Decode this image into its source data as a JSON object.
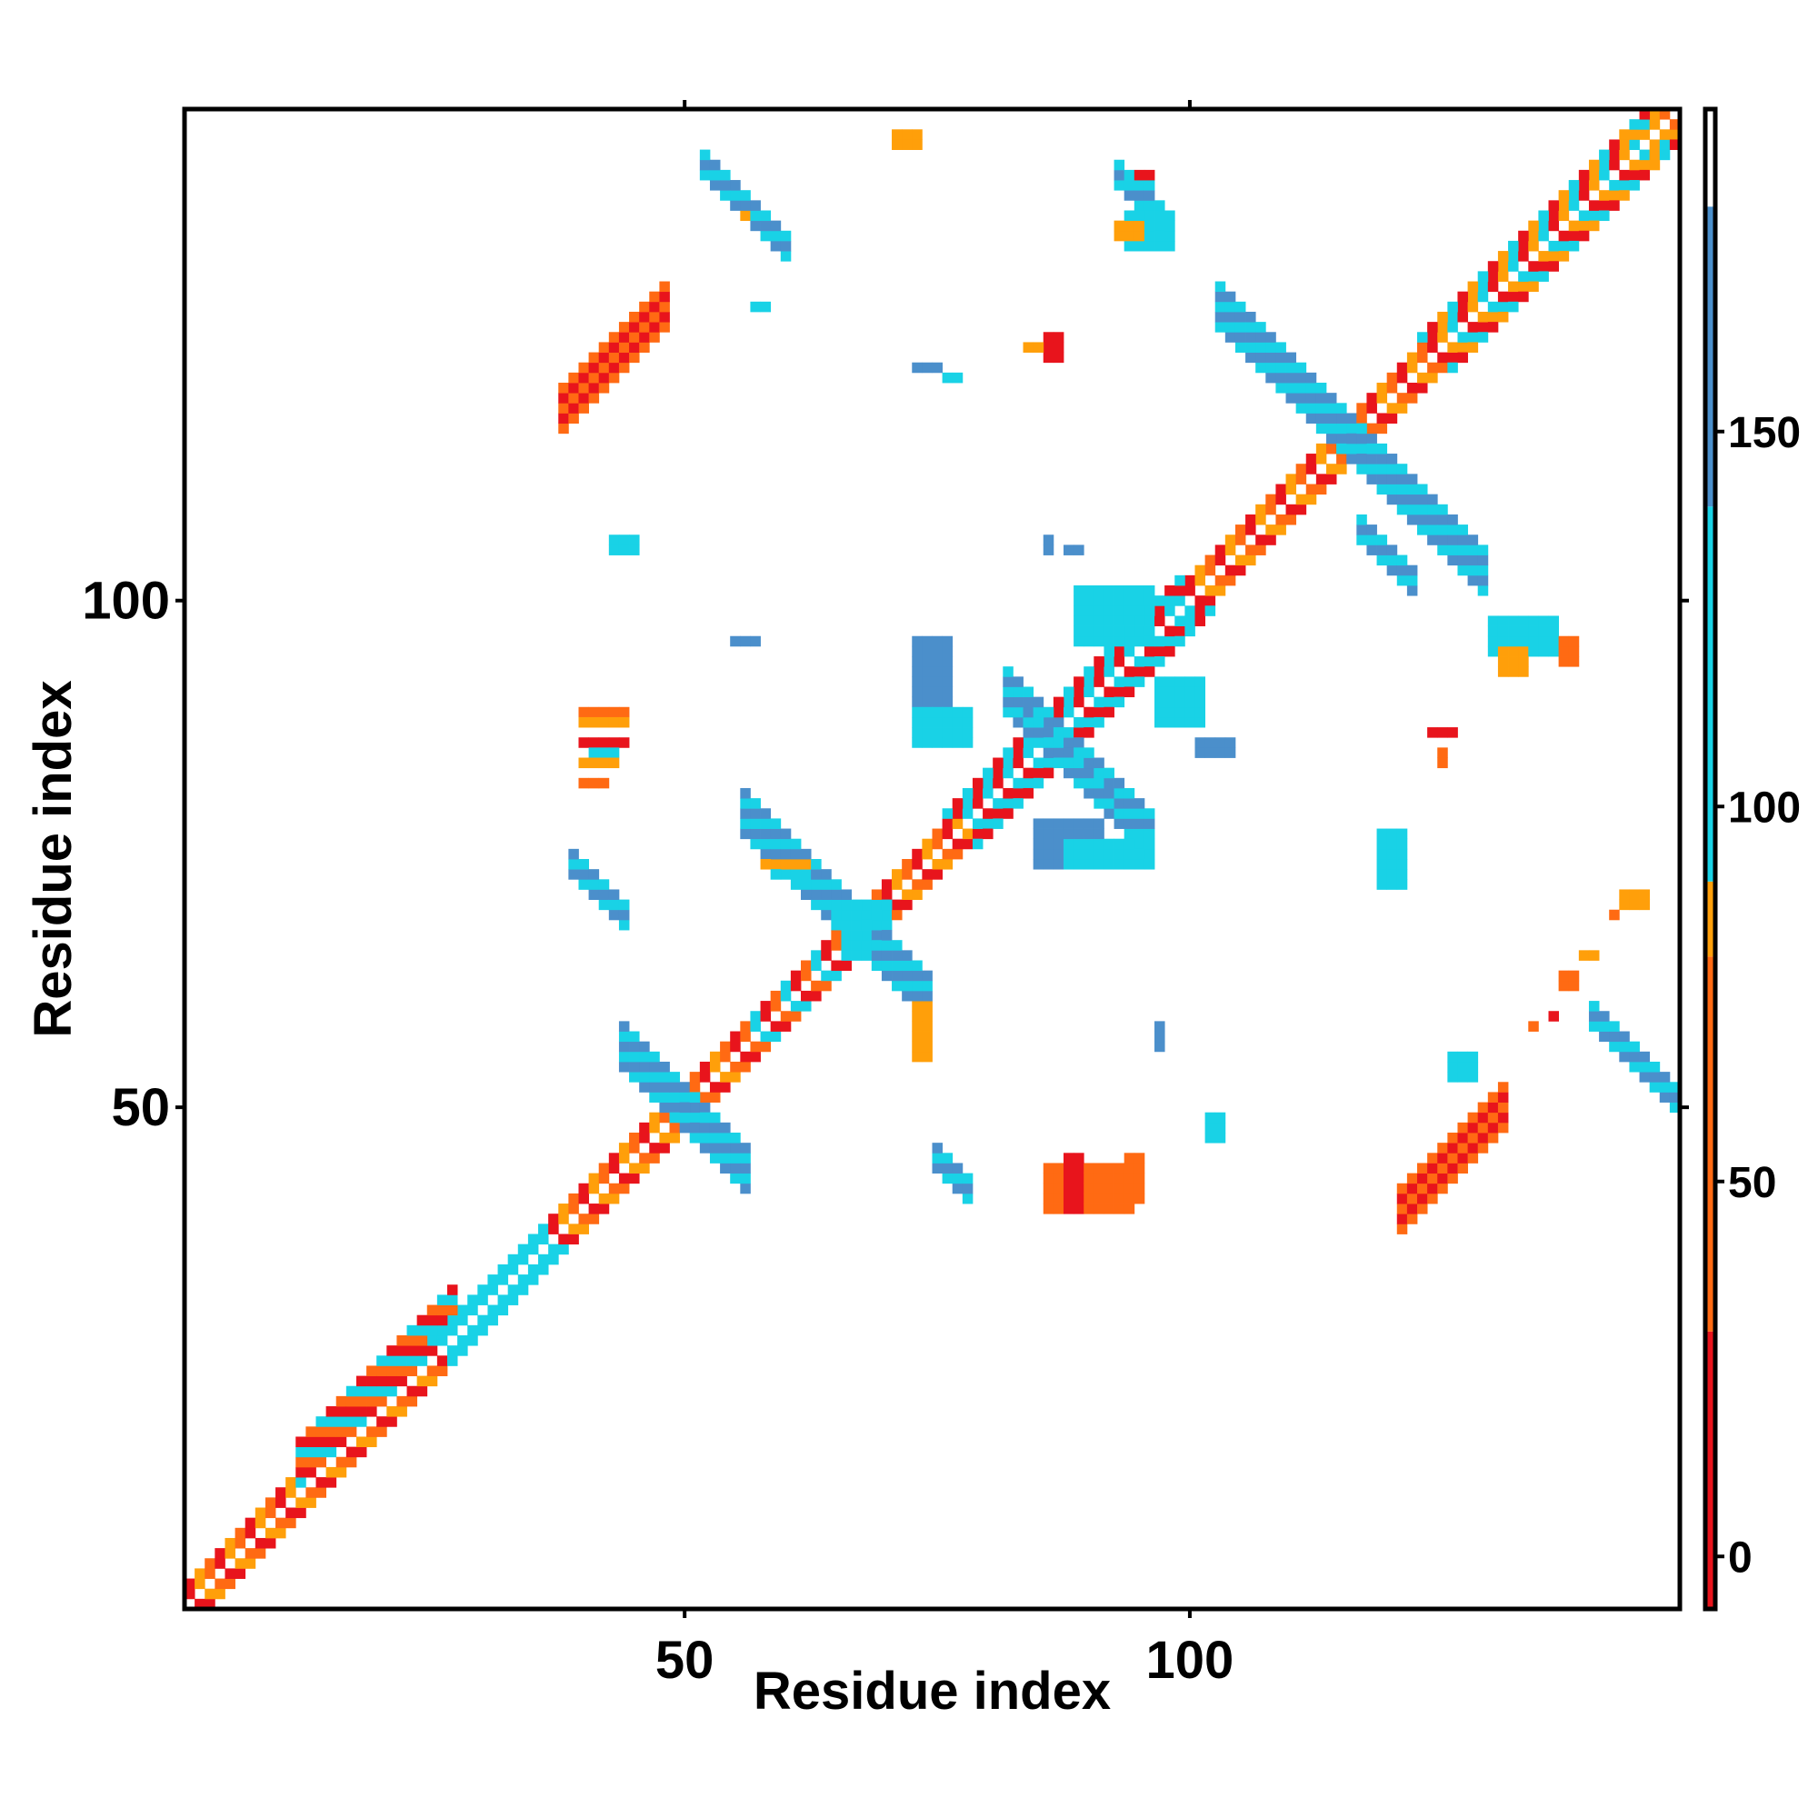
{
  "chart_data": {
    "type": "heatmap",
    "title": "",
    "xlabel": "Residue index",
    "ylabel": "Residue index",
    "xlim": [
      1,
      148
    ],
    "ylim": [
      1,
      148
    ],
    "x_ticks": [
      50,
      100
    ],
    "y_ticks": [
      50,
      100
    ],
    "colorbar": {
      "ticks": [
        0,
        50,
        100,
        150
      ],
      "range": [
        -7,
        193
      ],
      "bands": [
        {
          "from": -7,
          "to": 30,
          "color": "#e8141c"
        },
        {
          "from": 30,
          "to": 80,
          "color": "#ff6a13"
        },
        {
          "from": 80,
          "to": 90,
          "color": "#ff9f0a"
        },
        {
          "from": 90,
          "to": 140,
          "color": "#19d2e6"
        },
        {
          "from": 140,
          "to": 180,
          "color": "#4b8fcb"
        },
        {
          "from": 180,
          "to": 193,
          "color": "#ffffff"
        }
      ]
    },
    "regions": [
      {
        "type": "diag",
        "x1": 1,
        "x2": 148,
        "offset": 0,
        "half_width": 2,
        "pattern": "checker",
        "colors": [
          "#ff6a13",
          "#ff9f0a",
          "#e8141c"
        ]
      },
      {
        "type": "diag",
        "x1": 12,
        "x2": 27,
        "offset": 3,
        "half_width": 2,
        "pattern": "checker",
        "colors": [
          "#ff6a13",
          "#e8141c",
          "#19d2e6"
        ]
      },
      {
        "type": "diag",
        "x1": 27,
        "x2": 36,
        "offset": 0,
        "half_width": 2,
        "pattern": "checker",
        "colors": [
          "#19d2e6",
          "#ff9f0a"
        ]
      },
      {
        "type": "diag",
        "x1": 57,
        "x2": 68,
        "offset": 0,
        "half_width": 2,
        "pattern": "checker",
        "colors": [
          "#19d2e6",
          "#ff6a13",
          "#e8141c"
        ]
      },
      {
        "type": "diag",
        "x1": 79,
        "x2": 99,
        "offset": 0,
        "half_width": 3,
        "pattern": "checker",
        "colors": [
          "#19d2e6",
          "#ff6a13",
          "#e8141c",
          "#ff9f0a"
        ]
      },
      {
        "type": "diag",
        "x1": 126,
        "x2": 145,
        "offset": 0,
        "half_width": 3,
        "pattern": "checker",
        "colors": [
          "#19d2e6",
          "#ff9f0a",
          "#e8141c"
        ]
      },
      {
        "type": "anti",
        "x1": 44,
        "x2": 56,
        "c": 100,
        "half_width": 2,
        "colors": [
          "#4b8fcb",
          "#19d2e6"
        ]
      },
      {
        "type": "anti",
        "x1": 56,
        "x2": 74,
        "c": 135,
        "half_width": 2,
        "colors": [
          "#4b8fcb",
          "#19d2e6"
        ]
      },
      {
        "type": "anti",
        "x1": 103,
        "x2": 129,
        "c": 232,
        "half_width": 2,
        "colors": [
          "#4b8fcb",
          "#19d2e6"
        ]
      },
      {
        "type": "anti",
        "x1": 82,
        "x2": 96,
        "c": 173,
        "half_width": 2,
        "colors": [
          "#19d2e6",
          "#4b8fcb"
        ]
      },
      {
        "type": "anti",
        "x1": 52,
        "x2": 60,
        "c": 195,
        "half_width": 1,
        "colors": [
          "#4b8fcb",
          "#19d2e6"
        ]
      },
      {
        "type": "anti",
        "x1": 39,
        "x2": 44,
        "c": 113,
        "half_width": 1,
        "colors": [
          "#4b8fcb",
          "#19d2e6"
        ]
      },
      {
        "type": "anti",
        "x1": 75,
        "x2": 78,
        "c": 120,
        "half_width": 1,
        "colors": [
          "#4b8fcb",
          "#19d2e6"
        ]
      },
      {
        "type": "anti",
        "x1": 140,
        "x2": 148,
        "c": 199,
        "half_width": 1,
        "colors": [
          "#4b8fcb",
          "#19d2e6"
        ]
      },
      {
        "type": "anti",
        "x1": 117,
        "x2": 122,
        "c": 224,
        "half_width": 1,
        "colors": [
          "#19d2e6",
          "#4b8fcb"
        ]
      },
      {
        "type": "anti",
        "x1": 93,
        "x2": 97,
        "c": 235,
        "half_width": 1,
        "colors": [
          "#19d2e6",
          "#4b8fcb"
        ]
      },
      {
        "type": "anti",
        "x1": 84,
        "x2": 92,
        "c": 172,
        "half_width": 1,
        "colors": [
          "#19d2e6",
          "#4b8fcb"
        ]
      },
      {
        "type": "diag",
        "x1": 38,
        "x2": 48,
        "offset": 81,
        "half_width": 2,
        "colors": [
          "#ff6a13",
          "#e8141c",
          "#ff6a13"
        ]
      },
      {
        "type": "diag",
        "x1": 121,
        "x2": 131,
        "offset": -81,
        "half_width": 2,
        "colors": [
          "#ff6a13",
          "#e8141c",
          "#ff6a13"
        ]
      },
      {
        "type": "rect",
        "x1": 40,
        "x2": 44,
        "y1": 89,
        "y2": 89,
        "color": "#ff6a13"
      },
      {
        "type": "rect",
        "x1": 40,
        "x2": 44,
        "y1": 88,
        "y2": 88,
        "color": "#ff9f0a"
      },
      {
        "type": "rect",
        "x1": 40,
        "x2": 44,
        "y1": 86,
        "y2": 86,
        "color": "#e8141c"
      },
      {
        "type": "rect",
        "x1": 41,
        "x2": 43,
        "y1": 85,
        "y2": 85,
        "color": "#19d2e6"
      },
      {
        "type": "rect",
        "x1": 40,
        "x2": 43,
        "y1": 84,
        "y2": 84,
        "color": "#ff9f0a"
      },
      {
        "type": "rect",
        "x1": 40,
        "x2": 42,
        "y1": 82,
        "y2": 82,
        "color": "#ff6a13"
      },
      {
        "type": "rect",
        "x1": 86,
        "x2": 94,
        "y1": 40,
        "y2": 44,
        "color": "#ff6a13"
      },
      {
        "type": "rect",
        "x1": 88,
        "x2": 89,
        "y1": 40,
        "y2": 45,
        "color": "#e8141c"
      },
      {
        "type": "rect",
        "x1": 94,
        "x2": 95,
        "y1": 41,
        "y2": 45,
        "color": "#ff6a13"
      },
      {
        "type": "rect",
        "x1": 124,
        "x2": 126,
        "y1": 87,
        "y2": 87,
        "color": "#e8141c"
      },
      {
        "type": "rect",
        "x1": 125,
        "x2": 125,
        "y1": 84,
        "y2": 85,
        "color": "#ff6a13"
      },
      {
        "type": "rect",
        "x1": 71,
        "x2": 73,
        "y1": 145,
        "y2": 146,
        "color": "#ff9f0a"
      },
      {
        "type": "rect",
        "x1": 56,
        "x2": 56,
        "y1": 138,
        "y2": 138,
        "color": "#ff9f0a"
      },
      {
        "type": "rect",
        "x1": 94,
        "x2": 96,
        "y1": 141,
        "y2": 142,
        "color": "#19d2e6"
      },
      {
        "type": "rect",
        "x1": 95,
        "x2": 96,
        "y1": 142,
        "y2": 142,
        "color": "#e8141c"
      },
      {
        "type": "rect",
        "x1": 94,
        "x2": 98,
        "y1": 135,
        "y2": 138,
        "color": "#19d2e6"
      },
      {
        "type": "rect",
        "x1": 93,
        "x2": 95,
        "y1": 136,
        "y2": 137,
        "color": "#ff9f0a"
      },
      {
        "type": "rect",
        "x1": 57,
        "x2": 58,
        "y1": 129,
        "y2": 129,
        "color": "#19d2e6"
      },
      {
        "type": "rect",
        "x1": 86,
        "x2": 87,
        "y1": 124,
        "y2": 126,
        "color": "#e8141c"
      },
      {
        "type": "rect",
        "x1": 84,
        "x2": 85,
        "y1": 125,
        "y2": 125,
        "color": "#ff9f0a"
      },
      {
        "type": "rect",
        "x1": 73,
        "x2": 75,
        "y1": 123,
        "y2": 123,
        "color": "#4b8fcb"
      },
      {
        "type": "rect",
        "x1": 76,
        "x2": 77,
        "y1": 122,
        "y2": 122,
        "color": "#19d2e6"
      },
      {
        "type": "rect",
        "x1": 43,
        "x2": 45,
        "y1": 105,
        "y2": 106,
        "color": "#19d2e6"
      },
      {
        "type": "rect",
        "x1": 55,
        "x2": 57,
        "y1": 96,
        "y2": 96,
        "color": "#4b8fcb"
      },
      {
        "type": "rect",
        "x1": 86,
        "x2": 86,
        "y1": 105,
        "y2": 106,
        "color": "#4b8fcb"
      },
      {
        "type": "rect",
        "x1": 88,
        "x2": 89,
        "y1": 105,
        "y2": 105,
        "color": "#4b8fcb"
      },
      {
        "type": "rect",
        "x1": 89,
        "x2": 96,
        "y1": 96,
        "y2": 101,
        "color": "#19d2e6"
      },
      {
        "type": "rect",
        "x1": 73,
        "x2": 76,
        "y1": 90,
        "y2": 96,
        "color": "#4b8fcb"
      },
      {
        "type": "rect",
        "x1": 73,
        "x2": 78,
        "y1": 86,
        "y2": 89,
        "color": "#19d2e6"
      },
      {
        "type": "rect",
        "x1": 97,
        "x2": 101,
        "y1": 88,
        "y2": 92,
        "color": "#19d2e6"
      },
      {
        "type": "rect",
        "x1": 101,
        "x2": 104,
        "y1": 85,
        "y2": 86,
        "color": "#4b8fcb"
      },
      {
        "type": "rect",
        "x1": 85,
        "x2": 91,
        "y1": 74,
        "y2": 78,
        "color": "#4b8fcb"
      },
      {
        "type": "rect",
        "x1": 88,
        "x2": 96,
        "y1": 74,
        "y2": 76,
        "color": "#19d2e6"
      },
      {
        "type": "rect",
        "x1": 73,
        "x2": 74,
        "y1": 55,
        "y2": 60,
        "color": "#ff9f0a"
      },
      {
        "type": "rect",
        "x1": 102,
        "x2": 103,
        "y1": 47,
        "y2": 49,
        "color": "#19d2e6"
      },
      {
        "type": "rect",
        "x1": 97,
        "x2": 97,
        "y1": 56,
        "y2": 58,
        "color": "#4b8fcb"
      },
      {
        "type": "rect",
        "x1": 130,
        "x2": 136,
        "y1": 95,
        "y2": 98,
        "color": "#19d2e6"
      },
      {
        "type": "rect",
        "x1": 131,
        "x2": 133,
        "y1": 93,
        "y2": 95,
        "color": "#ff9f0a"
      },
      {
        "type": "rect",
        "x1": 137,
        "x2": 138,
        "y1": 94,
        "y2": 96,
        "color": "#ff6a13"
      },
      {
        "type": "rect",
        "x1": 119,
        "x2": 121,
        "y1": 72,
        "y2": 77,
        "color": "#19d2e6"
      },
      {
        "type": "rect",
        "x1": 143,
        "x2": 145,
        "y1": 70,
        "y2": 71,
        "color": "#ff9f0a"
      },
      {
        "type": "rect",
        "x1": 142,
        "x2": 142,
        "y1": 69,
        "y2": 69,
        "color": "#ff6a13"
      },
      {
        "type": "rect",
        "x1": 139,
        "x2": 140,
        "y1": 65,
        "y2": 65,
        "color": "#ff9f0a"
      },
      {
        "type": "rect",
        "x1": 137,
        "x2": 138,
        "y1": 62,
        "y2": 63,
        "color": "#ff6a13"
      },
      {
        "type": "rect",
        "x1": 136,
        "x2": 136,
        "y1": 59,
        "y2": 59,
        "color": "#e8141c"
      },
      {
        "type": "rect",
        "x1": 134,
        "x2": 134,
        "y1": 58,
        "y2": 58,
        "color": "#ff6a13"
      },
      {
        "type": "rect",
        "x1": 126,
        "x2": 128,
        "y1": 53,
        "y2": 55,
        "color": "#19d2e6"
      },
      {
        "type": "rect",
        "x1": 58,
        "x2": 62,
        "y1": 74,
        "y2": 74,
        "color": "#ff9f0a"
      },
      {
        "type": "rect",
        "x1": 59,
        "x2": 62,
        "y1": 73,
        "y2": 73,
        "color": "#19d2e6"
      },
      {
        "type": "rect",
        "x1": 65,
        "x2": 70,
        "y1": 68,
        "y2": 70,
        "color": "#19d2e6"
      },
      {
        "type": "rect",
        "x1": 66,
        "x2": 68,
        "y1": 65,
        "y2": 67,
        "color": "#19d2e6"
      }
    ]
  }
}
